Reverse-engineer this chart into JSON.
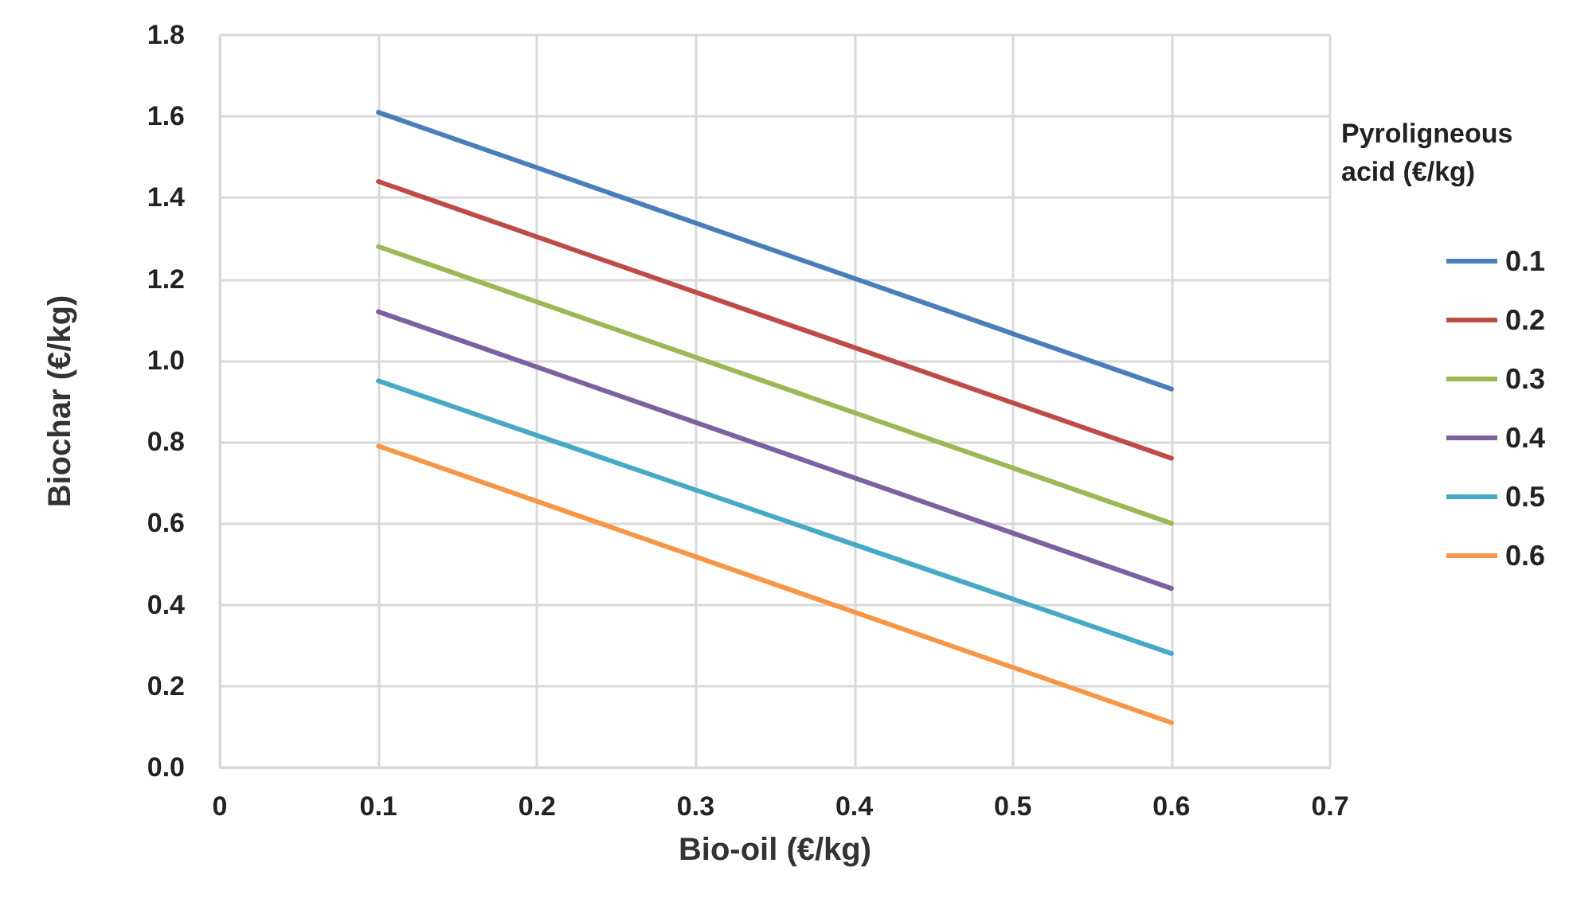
{
  "chart_data": {
    "type": "line",
    "xlabel": "Bio-oil (€/kg)",
    "ylabel": "Biochar (€/kg)",
    "legend_title": "Pyroligneous acid (€/kg)",
    "x": [
      0.1,
      0.6
    ],
    "series": [
      {
        "name": "0.1",
        "color": "#4a7ebb",
        "values": [
          1.61,
          0.93
        ]
      },
      {
        "name": "0.2",
        "color": "#be4b48",
        "values": [
          1.44,
          0.76
        ]
      },
      {
        "name": "0.3",
        "color": "#98b954",
        "values": [
          1.28,
          0.6
        ]
      },
      {
        "name": "0.4",
        "color": "#7d60a0",
        "values": [
          1.12,
          0.44
        ]
      },
      {
        "name": "0.5",
        "color": "#46aac5",
        "values": [
          0.95,
          0.28
        ]
      },
      {
        "name": "0.6",
        "color": "#f79646",
        "values": [
          0.79,
          0.11
        ]
      }
    ],
    "xlim": [
      0,
      0.7
    ],
    "xticks": [
      {
        "value": 0,
        "label": "0"
      },
      {
        "value": 0.1,
        "label": "0.1"
      },
      {
        "value": 0.2,
        "label": "0.2"
      },
      {
        "value": 0.3,
        "label": "0.3"
      },
      {
        "value": 0.4,
        "label": "0.4"
      },
      {
        "value": 0.5,
        "label": "0.5"
      },
      {
        "value": 0.6,
        "label": "0.6"
      },
      {
        "value": 0.7,
        "label": "0.7"
      }
    ],
    "ylim": [
      0,
      1.8
    ],
    "yticks": [
      {
        "value": 0,
        "label": "0.0"
      },
      {
        "value": 0.2,
        "label": "0.2"
      },
      {
        "value": 0.4,
        "label": "0.4"
      },
      {
        "value": 0.6,
        "label": "0.6"
      },
      {
        "value": 0.8,
        "label": "0.8"
      },
      {
        "value": 1,
        "label": "1.0"
      },
      {
        "value": 1.2,
        "label": "1.2"
      },
      {
        "value": 1.4,
        "label": "1.4"
      },
      {
        "value": 1.6,
        "label": "1.6"
      },
      {
        "value": 1.8,
        "label": "1.8"
      }
    ],
    "grid": true,
    "legend": "right",
    "marker": "none",
    "line_style": "solid"
  }
}
